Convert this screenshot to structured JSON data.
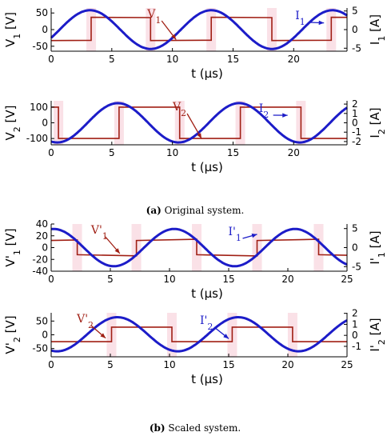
{
  "colors": {
    "voltage": "#a01f14",
    "current": "#1c1cc8",
    "band": "#f6c9d3"
  },
  "captions": {
    "a_tag": "(a)",
    "a_text": " Original system.",
    "b_tag": "(b)",
    "b_text": " Scaled system."
  },
  "chart_data": [
    {
      "type": "line",
      "id": "original-1",
      "title": "",
      "xlabel": "t (μs)",
      "ylabel": "V1 [V]",
      "y2label": "I1 [A]",
      "xlim": [
        0,
        24.4
      ],
      "ylim": [
        -65,
        65
      ],
      "y2lim": [
        -5.8,
        5.8
      ],
      "xticks": [
        0,
        5,
        10,
        15,
        20
      ],
      "xticklabels": [
        "0",
        "5",
        "10",
        "15",
        "20"
      ],
      "yticks": [
        50,
        0,
        -50
      ],
      "yticklabels": [
        "50",
        "0",
        "-50"
      ],
      "y2ticks": [
        5,
        0,
        -5
      ],
      "y2ticklabels": [
        "5",
        "0",
        "-5"
      ],
      "grid": false,
      "series": [
        {
          "name": "V1",
          "axis": "left",
          "color": "voltage",
          "shape": "square",
          "low": -33,
          "high": 37,
          "rise_times": [
            3.3,
            13.2,
            23.1
          ],
          "fall_times": [
            8.2,
            18.2
          ],
          "start": "low",
          "tilt": -2
        },
        {
          "name": "I1",
          "axis": "right",
          "color": "current",
          "shape": "sine",
          "amplitude": 5.2,
          "period": 10,
          "phase": 3.2,
          "offset": 0
        }
      ],
      "annotations": [
        {
          "text": "V",
          "sub": "1",
          "color": "voltage",
          "points_to": [
            10.3,
            -30
          ]
        },
        {
          "text": "I",
          "sub": "1",
          "color": "current",
          "points_to": [
            22.5,
            1.8
          ]
        }
      ]
    },
    {
      "type": "line",
      "id": "original-2",
      "title": "",
      "xlabel": "t (μs)",
      "ylabel": "V2 [V]",
      "y2label": "I2 [A]",
      "xlim": [
        0,
        24.4
      ],
      "ylim": [
        -140,
        140
      ],
      "y2lim": [
        -2.35,
        2.35
      ],
      "xticks": [
        0,
        5,
        10,
        15,
        20
      ],
      "xticklabels": [
        "0",
        "5",
        "10",
        "15",
        "20"
      ],
      "yticks": [
        100,
        0,
        -100
      ],
      "yticklabels": [
        "100",
        "0",
        "-100"
      ],
      "y2ticks": [
        2,
        1,
        0,
        -1,
        -2
      ],
      "y2ticklabels": [
        "2",
        "1",
        "0",
        "-1",
        "-2"
      ],
      "grid": false,
      "series": [
        {
          "name": "V2",
          "axis": "left",
          "color": "voltage",
          "shape": "square",
          "low": -100,
          "high": 100,
          "rise_times": [
            5.6,
            15.6
          ],
          "fall_times": [
            0.6,
            10.6,
            20.6
          ],
          "start": "high",
          "tilt": 0
        },
        {
          "name": "I2",
          "axis": "right",
          "color": "current",
          "shape": "sine",
          "amplitude": 2.1,
          "period": 10,
          "phase": 5.5,
          "offset": 0
        }
      ],
      "annotations": [
        {
          "text": "V",
          "sub": "2",
          "color": "voltage",
          "points_to": [
            12.4,
            -100
          ]
        },
        {
          "text": "I",
          "sub": "2",
          "color": "current",
          "points_to": [
            19.5,
            0.8
          ]
        }
      ]
    },
    {
      "type": "line",
      "id": "scaled-1",
      "title": "",
      "xlabel": "t (μs)",
      "ylabel": "V'1 [V]",
      "y2label": "I'1 [A]",
      "xlim": [
        0,
        25
      ],
      "ylim": [
        -40,
        40
      ],
      "y2lim": [
        -6.2,
        6.2
      ],
      "xticks": [
        0,
        5,
        10,
        15,
        20,
        25
      ],
      "xticklabels": [
        "0",
        "5",
        "10",
        "15",
        "20",
        "25"
      ],
      "yticks": [
        40,
        20,
        0,
        -20,
        -40
      ],
      "yticklabels": [
        "40",
        "20",
        "0",
        "-20",
        "-40"
      ],
      "y2ticks": [
        5,
        0,
        -5
      ],
      "y2ticklabels": [
        "5",
        "0",
        "-5"
      ],
      "grid": false,
      "series": [
        {
          "name": "V'1",
          "axis": "left",
          "color": "voltage",
          "shape": "square",
          "low": -12,
          "high": 12,
          "rise_times": [
            7.2,
            17.4
          ],
          "fall_times": [
            2.2,
            12.3,
            22.6
          ],
          "start": "high",
          "tilt": 4
        },
        {
          "name": "I'1",
          "axis": "right",
          "color": "current",
          "shape": "sine",
          "amplitude": 4.9,
          "period": 10.2,
          "phase": 0.2,
          "offset": 0
        }
      ],
      "annotations": [
        {
          "text": "V'",
          "sub": "1",
          "color": "voltage",
          "points_to": [
            5.8,
            -10
          ]
        },
        {
          "text": "I'",
          "sub": "1",
          "color": "current",
          "points_to": [
            17.4,
            3.5
          ]
        }
      ]
    },
    {
      "type": "line",
      "id": "scaled-2",
      "title": "",
      "xlabel": "t (μs)",
      "ylabel": "V'2 [V]",
      "y2label": "I'2 [A]",
      "xlim": [
        0,
        25
      ],
      "ylim": [
        -80,
        80
      ],
      "y2lim": [
        -1.95,
        2.05
      ],
      "xticks": [
        0,
        5,
        10,
        15,
        20,
        25
      ],
      "xticklabels": [
        "0",
        "5",
        "10",
        "15",
        "20",
        "25"
      ],
      "yticks": [
        50,
        0,
        -50
      ],
      "yticklabels": [
        "50",
        "0",
        "-50"
      ],
      "y2ticks": [
        2,
        1,
        0,
        -1
      ],
      "y2ticklabels": [
        "2",
        "1",
        "0",
        "-1"
      ],
      "grid": false,
      "series": [
        {
          "name": "V'2",
          "axis": "left",
          "color": "voltage",
          "shape": "square",
          "low": -25,
          "high": 28,
          "rise_times": [
            5.1,
            15.3
          ],
          "fall_times": [
            10.2,
            20.4
          ],
          "start": "low",
          "tilt": 0
        },
        {
          "name": "I'2",
          "axis": "right",
          "color": "current",
          "shape": "sine",
          "amplitude": 1.55,
          "period": 10.2,
          "phase": 5.6,
          "offset": 0.1
        }
      ],
      "annotations": [
        {
          "text": "V'",
          "sub": "2",
          "color": "voltage",
          "points_to": [
            4.6,
            -12
          ]
        },
        {
          "text": "I'",
          "sub": "2",
          "color": "current",
          "points_to": [
            15.0,
            -0.3
          ]
        }
      ]
    }
  ]
}
